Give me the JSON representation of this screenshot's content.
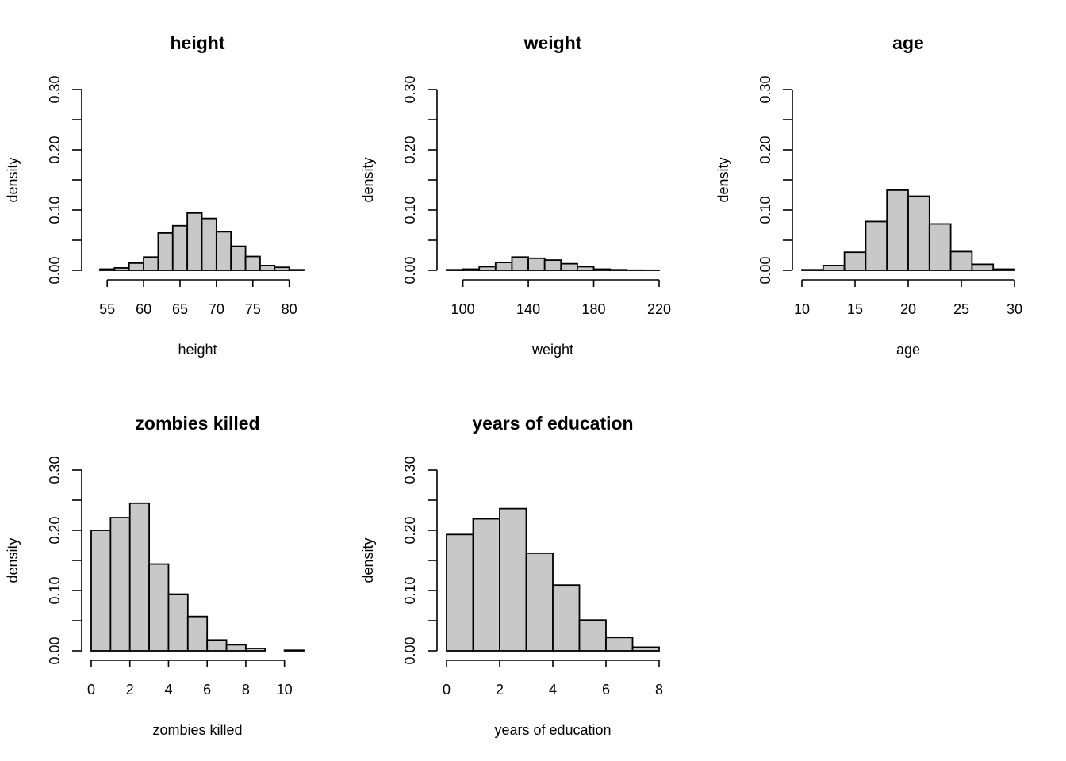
{
  "chart_data": [
    {
      "type": "bar",
      "title": "height",
      "xlabel": "height",
      "ylabel": "density",
      "bin_edges": [
        54,
        56,
        58,
        60,
        62,
        64,
        66,
        68,
        70,
        72,
        74,
        76,
        78,
        80,
        82
      ],
      "values": [
        0.002,
        0.004,
        0.012,
        0.022,
        0.062,
        0.074,
        0.095,
        0.086,
        0.064,
        0.04,
        0.023,
        0.008,
        0.005,
        0.001
      ],
      "xlim": [
        52.8,
        82.0
      ],
      "ylim": [
        0,
        0.3
      ],
      "xticks": [
        "55",
        "60",
        "65",
        "70",
        "75",
        "80"
      ],
      "yticks": [
        "0.00",
        "0.10",
        "0.20",
        "0.30"
      ]
    },
    {
      "type": "bar",
      "title": "weight",
      "xlabel": "weight",
      "ylabel": "density",
      "bin_edges": [
        90,
        100,
        110,
        120,
        130,
        140,
        150,
        160,
        170,
        180,
        190,
        200,
        210,
        220
      ],
      "values": [
        0.001,
        0.002,
        0.006,
        0.013,
        0.022,
        0.02,
        0.017,
        0.011,
        0.006,
        0.002,
        0.001,
        0.0003,
        0.0002
      ],
      "xlim": [
        90,
        220
      ],
      "ylim": [
        0,
        0.3
      ],
      "xticks": [
        "100",
        "140",
        "180",
        "220"
      ],
      "yticks": [
        "0.00",
        "0.10",
        "0.20",
        "0.30"
      ]
    },
    {
      "type": "bar",
      "title": "age",
      "xlabel": "age",
      "ylabel": "density",
      "bin_edges": [
        10,
        12,
        14,
        16,
        18,
        20,
        22,
        24,
        26,
        28,
        30
      ],
      "values": [
        0.001,
        0.008,
        0.03,
        0.081,
        0.133,
        0.123,
        0.077,
        0.031,
        0.01,
        0.002
      ],
      "xlim": [
        10,
        30
      ],
      "ylim": [
        0,
        0.3
      ],
      "xticks": [
        "10",
        "15",
        "20",
        "25",
        "30"
      ],
      "yticks": [
        "0.00",
        "0.10",
        "0.20",
        "0.30"
      ]
    },
    {
      "type": "bar",
      "title": "zombies killed",
      "xlabel": "zombies killed",
      "ylabel": "density",
      "bin_edges": [
        0,
        1,
        2,
        3,
        4,
        5,
        6,
        7,
        8,
        9,
        10,
        11
      ],
      "values": [
        0.2,
        0.221,
        0.245,
        0.144,
        0.094,
        0.057,
        0.018,
        0.01,
        0.004,
        0.0,
        0.001
      ],
      "xlim": [
        0,
        11
      ],
      "ylim": [
        0,
        0.3
      ],
      "xticks": [
        "0",
        "2",
        "4",
        "6",
        "8",
        "10"
      ],
      "yticks": [
        "0.00",
        "0.10",
        "0.20",
        "0.30"
      ]
    },
    {
      "type": "bar",
      "title": "years of education",
      "xlabel": "years of education",
      "ylabel": "density",
      "bin_edges": [
        0,
        1,
        2,
        3,
        4,
        5,
        6,
        7,
        8
      ],
      "values": [
        0.193,
        0.219,
        0.236,
        0.162,
        0.109,
        0.051,
        0.022,
        0.006
      ],
      "xlim": [
        0,
        8
      ],
      "ylim": [
        0,
        0.3
      ],
      "xticks": [
        "0",
        "2",
        "4",
        "6",
        "8"
      ],
      "yticks": [
        "0.00",
        "0.10",
        "0.20",
        "0.30"
      ]
    }
  ],
  "colors": {
    "bar_fill": "#c8c8c8",
    "bar_stroke": "#000000",
    "background": "#ffffff"
  },
  "grid": false
}
